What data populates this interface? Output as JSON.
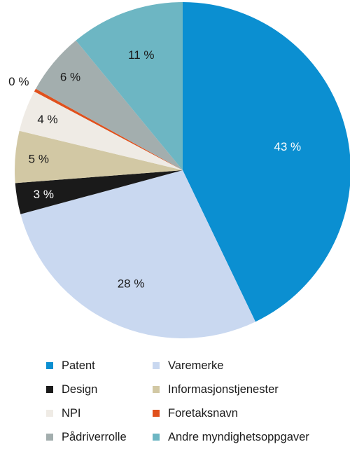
{
  "chart_data": {
    "type": "pie",
    "start_angle_deg": 0,
    "direction": "clockwise",
    "slices": [
      {
        "label": "Patent",
        "value": 43,
        "display": "43 %",
        "color": "#0b8fd1",
        "label_color": "#ffffff"
      },
      {
        "label": "Varemerke",
        "value": 28,
        "display": "28 %",
        "color": "#c9d8f0",
        "label_color": "#1a1a1a"
      },
      {
        "label": "Design",
        "value": 3,
        "display": "3 %",
        "color": "#1a1a1a",
        "label_color": "#ffffff"
      },
      {
        "label": "Informasjonstjenester",
        "value": 5,
        "display": "5 %",
        "color": "#d2c8a4",
        "label_color": "#1a1a1a"
      },
      {
        "label": "NPI",
        "value": 4,
        "display": "4 %",
        "color": "#efebe5",
        "label_color": "#1a1a1a"
      },
      {
        "label": "Foretaksnavn",
        "value": 0.3,
        "display": "0 %",
        "color": "#e0501c",
        "label_color": "#1a1a1a"
      },
      {
        "label": "Pådriverrolle",
        "value": 6,
        "display": "6 %",
        "color": "#a3aeae",
        "label_color": "#1a1a1a"
      },
      {
        "label": "Andre myndighetsoppgaver",
        "value": 11,
        "display": "11 %",
        "color": "#6db6c3",
        "label_color": "#1a1a1a"
      }
    ],
    "legend": {
      "placement": "bottom",
      "columns": 2,
      "items": [
        "Patent",
        "Varemerke",
        "Design",
        "Informasjonstjenester",
        "NPI",
        "Foretaksnavn",
        "Pådriverrolle",
        "Andre myndighetsoppgaver"
      ]
    }
  }
}
